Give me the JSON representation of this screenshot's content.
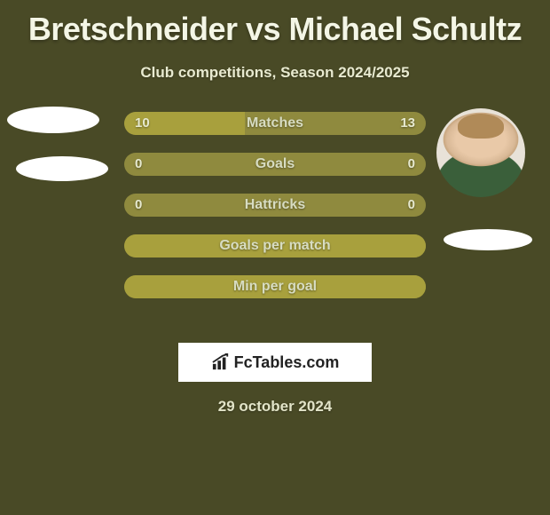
{
  "title": "Bretschneider vs Michael Schultz",
  "subtitle": "Club competitions, Season 2024/2025",
  "date_text": "29 october 2024",
  "logo": {
    "text": "FcTables.com"
  },
  "player_left": {
    "name": "Bretschneider"
  },
  "player_right": {
    "name": "Michael Schultz"
  },
  "chart": {
    "type": "h2h-bar",
    "bar_bg_color": "#8f8a3e",
    "bar_fill_color": "#a8a03d",
    "text_color": "#d7dcc2",
    "value_color": "#e6e9cf",
    "page_background": "#494a26",
    "rows": [
      {
        "label": "Matches",
        "left_value": "10",
        "right_value": "13",
        "left_fill_pct": 40
      },
      {
        "label": "Goals",
        "left_value": "0",
        "right_value": "0",
        "left_fill_pct": 0
      },
      {
        "label": "Hattricks",
        "left_value": "0",
        "right_value": "0",
        "left_fill_pct": 0
      },
      {
        "label": "Goals per match",
        "left_value": "",
        "right_value": "",
        "left_fill_pct": 100
      },
      {
        "label": "Min per goal",
        "left_value": "",
        "right_value": "",
        "left_fill_pct": 100
      }
    ]
  }
}
